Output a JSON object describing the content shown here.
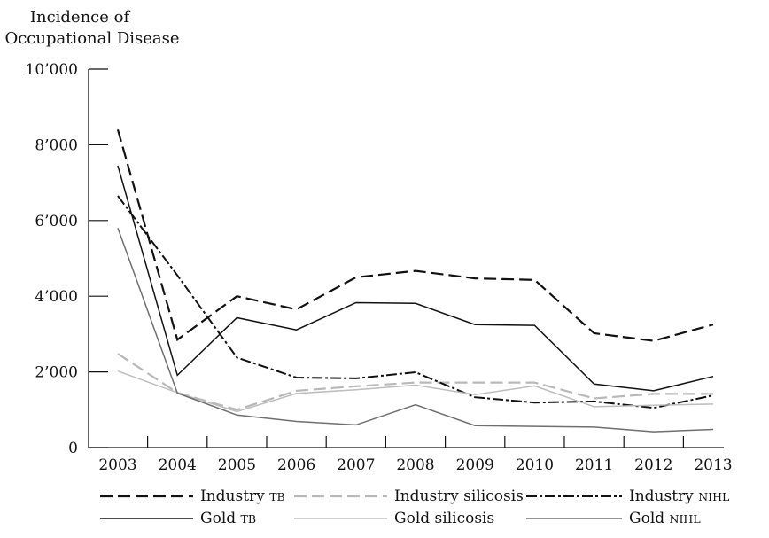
{
  "chart_data": {
    "type": "line",
    "ylabel": [
      "Incidence of",
      "Occupational Disease"
    ],
    "xlabel": "",
    "categories": [
      "2003",
      "2004",
      "2005",
      "2006",
      "2007",
      "2008",
      "2009",
      "2010",
      "2011",
      "2012",
      "2013"
    ],
    "yticks": [
      "0",
      "2’000",
      "4’000",
      "6’000",
      "8’000",
      "10’000"
    ],
    "ylim": [
      0,
      10000
    ],
    "grid": false,
    "legend_position": "bottom",
    "series": [
      {
        "name": "Industry TB",
        "legend_main": "Industry ",
        "legend_sc": "TB",
        "style": "dashed",
        "color": "#111111",
        "values": [
          8400,
          2850,
          4000,
          3650,
          4500,
          4670,
          4470,
          4430,
          3020,
          2820,
          3250
        ]
      },
      {
        "name": "Industry silicosis",
        "legend_main": "Industry silicosis",
        "legend_sc": "",
        "style": "dashed",
        "color": "#b8b8b8",
        "values": [
          2480,
          1450,
          1000,
          1500,
          1620,
          1720,
          1720,
          1720,
          1300,
          1420,
          1420
        ]
      },
      {
        "name": "Industry NIHL",
        "legend_main": "Industry ",
        "legend_sc": "NIHL",
        "style": "dashdot",
        "color": "#111111",
        "values": [
          6650,
          4550,
          2380,
          1850,
          1830,
          1990,
          1330,
          1190,
          1220,
          1050,
          1380
        ]
      },
      {
        "name": "Gold TB",
        "legend_main": "Gold ",
        "legend_sc": "TB",
        "style": "solid",
        "color": "#111111",
        "values": [
          7450,
          1910,
          3430,
          3110,
          3830,
          3810,
          3250,
          3230,
          1680,
          1500,
          1880
        ]
      },
      {
        "name": "Gold silicosis",
        "legend_main": "Gold silicosis",
        "legend_sc": "",
        "style": "solid",
        "color": "#bdbdbd",
        "values": [
          2020,
          1450,
          950,
          1430,
          1530,
          1650,
          1400,
          1630,
          1080,
          1120,
          1150
        ]
      },
      {
        "name": "Gold NIHL",
        "legend_main": "Gold ",
        "legend_sc": "NIHL",
        "style": "solid",
        "color": "#6f6f6f",
        "values": [
          5800,
          1440,
          860,
          690,
          600,
          1130,
          580,
          560,
          540,
          420,
          480
        ]
      }
    ]
  }
}
